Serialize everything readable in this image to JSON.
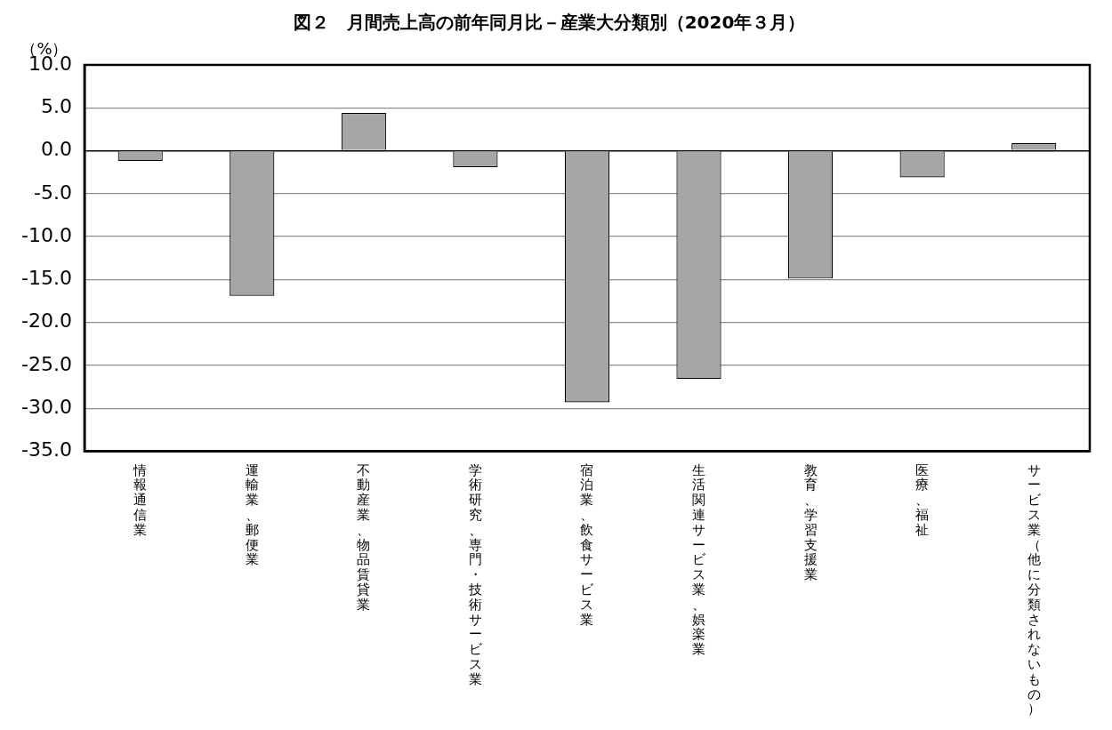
{
  "chart_data": {
    "type": "bar",
    "title": "図２　月間売上高の前年同月比－産業大分類別（2020年３月）",
    "ylabel": "（%）",
    "categories": [
      "情報通信業",
      "運輸業、郵便業",
      "不動産業、物品賃貸業",
      "学術研究、専門・技術サービス業",
      "宿泊業、飲食サービス業",
      "生活関連サービス業、娯楽業",
      "教育、学習支援業",
      "医療、福祉",
      "サービス業（他に分類されないもの）"
    ],
    "values": [
      -1.2,
      -16.9,
      4.4,
      -1.9,
      -29.3,
      -26.6,
      -14.9,
      -3.1,
      0.9
    ],
    "color": "#a6a6a6",
    "ylim": [
      -35,
      10
    ],
    "yticks": [
      {
        "value": -35,
        "label": "-35.0"
      },
      {
        "value": -30,
        "label": "-30.0"
      },
      {
        "value": -25,
        "label": "-25.0"
      },
      {
        "value": -20,
        "label": "-20.0"
      },
      {
        "value": -15,
        "label": "-15.0"
      },
      {
        "value": -10,
        "label": "-10.0"
      },
      {
        "value": -5,
        "label": "-5.0"
      },
      {
        "value": 0,
        "label": "0.0"
      },
      {
        "value": 5,
        "label": "5.0"
      },
      {
        "value": 10,
        "label": "10.0"
      }
    ],
    "grid": "y",
    "legend": false
  }
}
